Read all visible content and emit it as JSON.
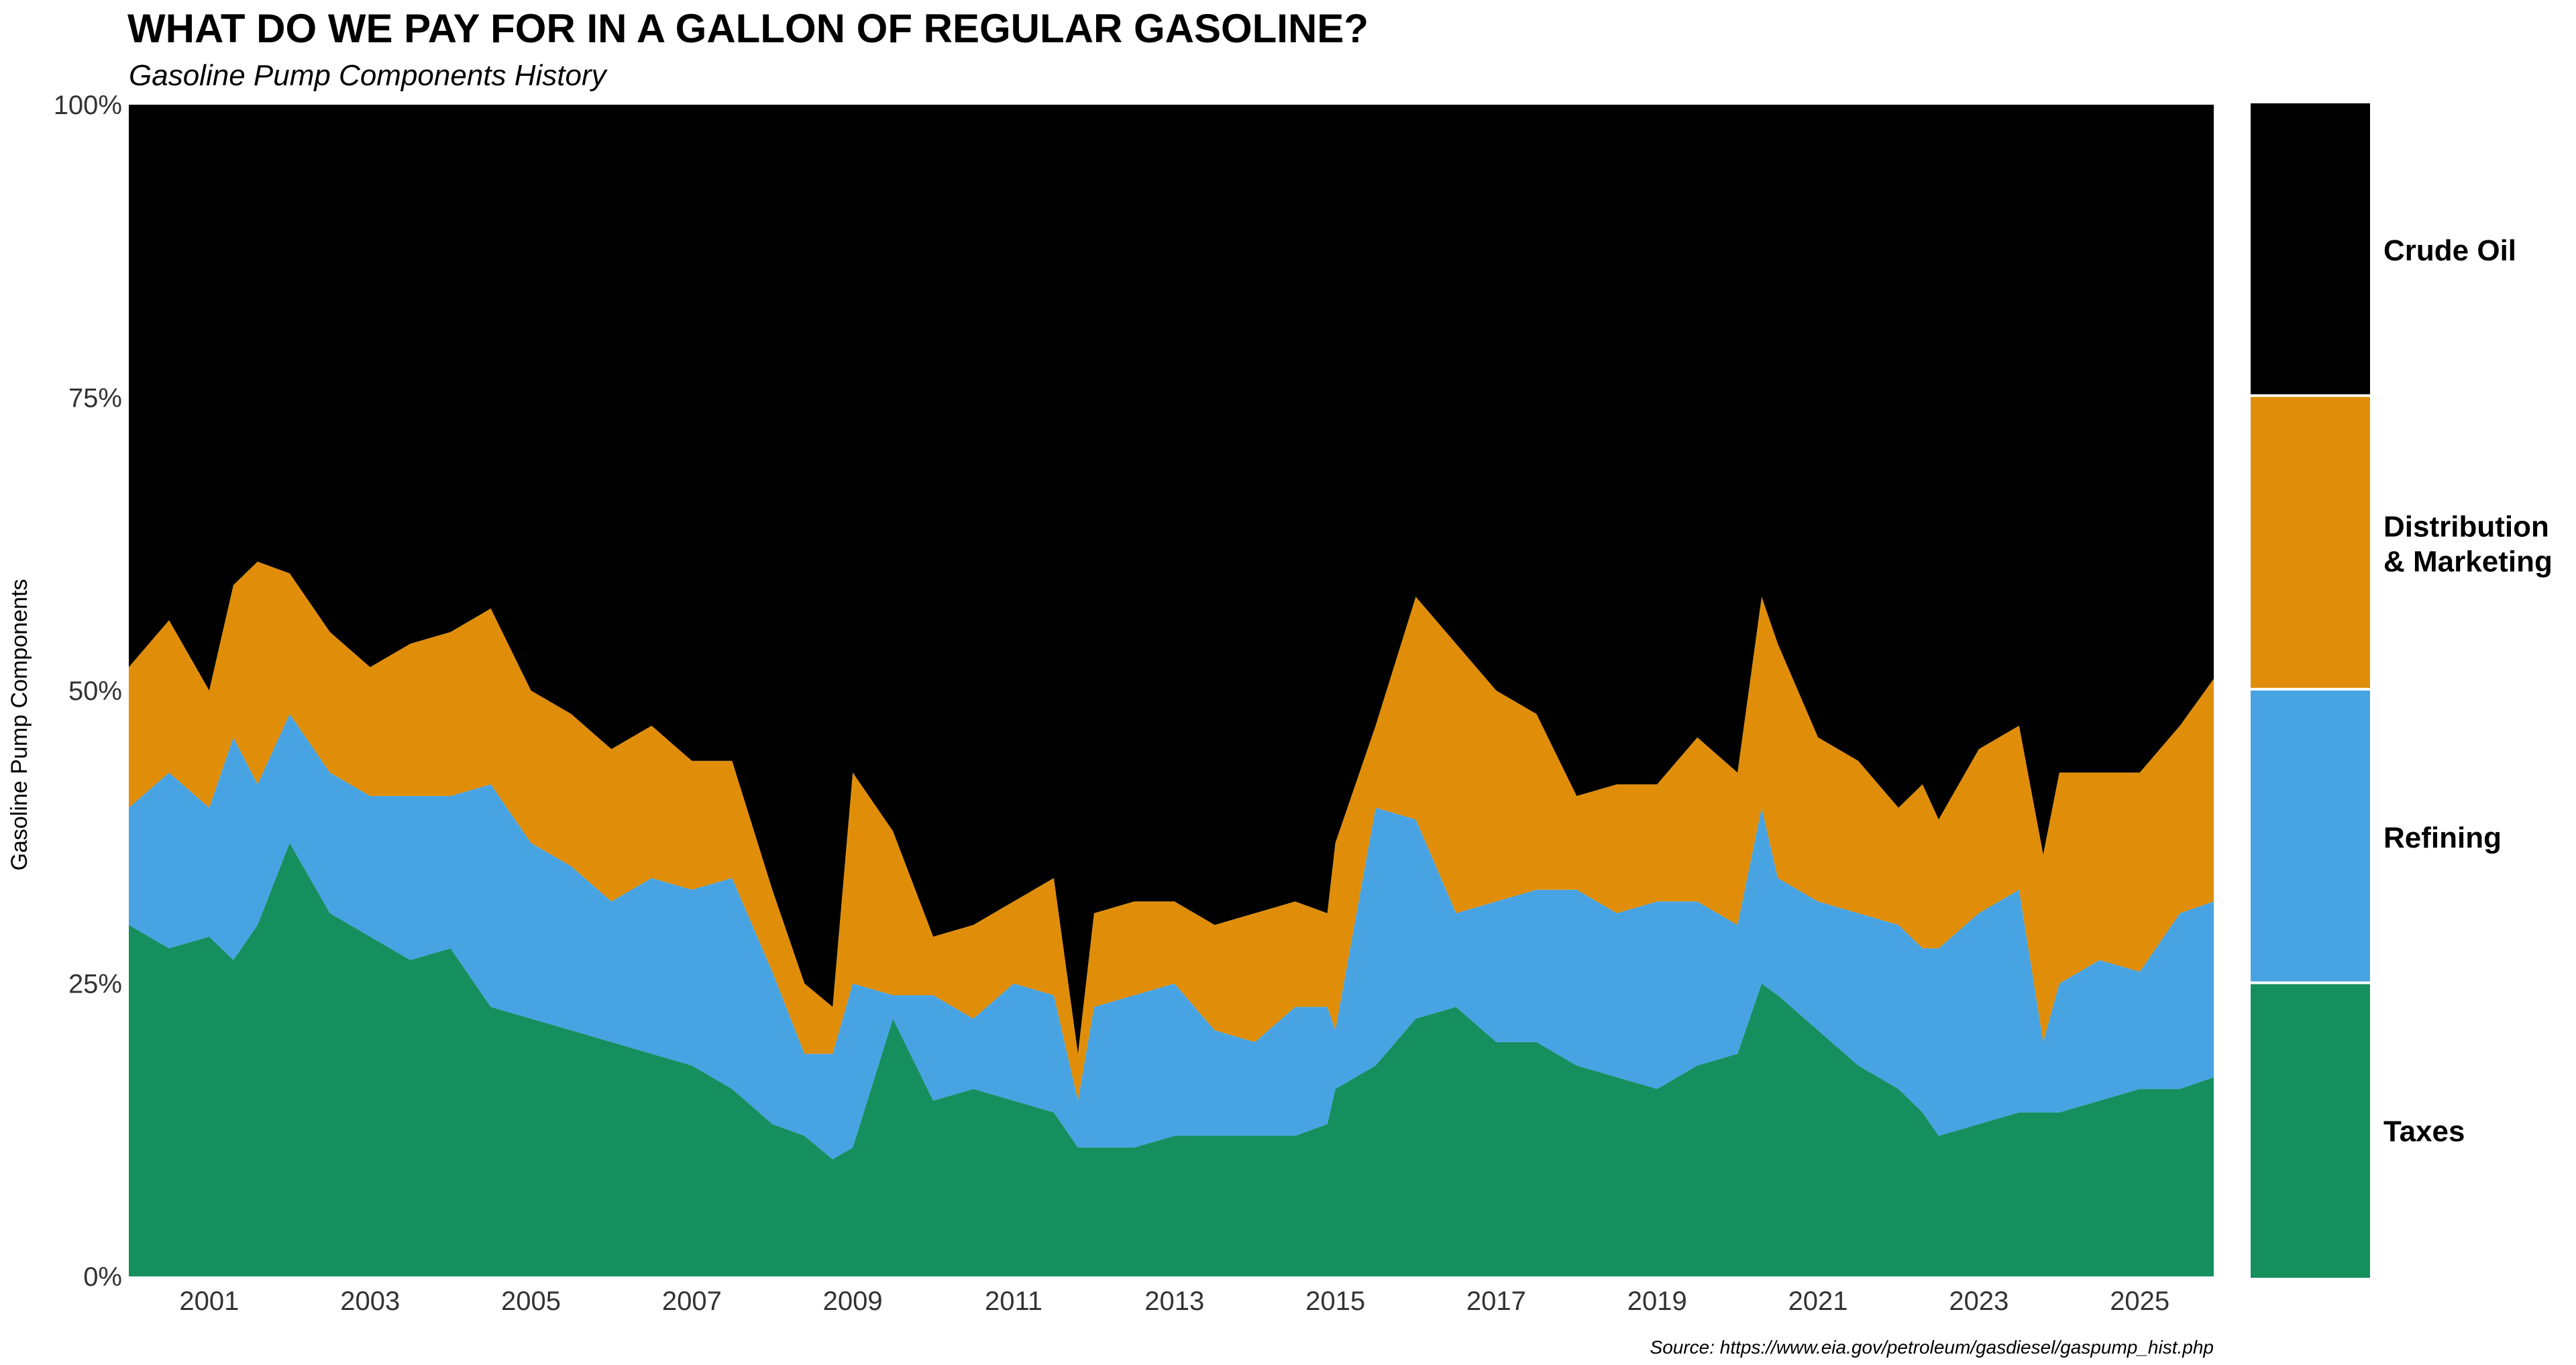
{
  "chart_data": {
    "type": "area",
    "stacked": true,
    "normalized": true,
    "title": "WHAT DO WE PAY FOR IN A GALLON OF REGULAR GASOLINE?",
    "subtitle": "Gasoline Pump Components History",
    "ylabel": "Gasoline Pump Components",
    "xlabel": "",
    "source": "Source: https://www.eia.gov/petroleum/gasdiesel/gaspump_hist.php",
    "ylim": [
      0,
      100
    ],
    "xlim": [
      2000.0,
      2025.92
    ],
    "y_ticks": [
      {
        "value": 0,
        "label": "0%"
      },
      {
        "value": 25,
        "label": "25%"
      },
      {
        "value": 50,
        "label": "50%"
      },
      {
        "value": 75,
        "label": "75%"
      },
      {
        "value": 100,
        "label": "100%"
      }
    ],
    "x_ticks": [
      {
        "value": 2001,
        "label": "2001"
      },
      {
        "value": 2003,
        "label": "2003"
      },
      {
        "value": 2005,
        "label": "2005"
      },
      {
        "value": 2007,
        "label": "2007"
      },
      {
        "value": 2009,
        "label": "2009"
      },
      {
        "value": 2011,
        "label": "2011"
      },
      {
        "value": 2013,
        "label": "2013"
      },
      {
        "value": 2015,
        "label": "2015"
      },
      {
        "value": 2017,
        "label": "2017"
      },
      {
        "value": 2019,
        "label": "2019"
      },
      {
        "value": 2021,
        "label": "2021"
      },
      {
        "value": 2023,
        "label": "2023"
      },
      {
        "value": 2025,
        "label": "2025"
      }
    ],
    "x": [
      2000.0,
      2000.5,
      2001.0,
      2001.3,
      2001.6,
      2002.0,
      2002.5,
      2003.0,
      2003.5,
      2004.0,
      2004.5,
      2005.0,
      2005.5,
      2006.0,
      2006.5,
      2007.0,
      2007.5,
      2008.0,
      2008.4,
      2008.75,
      2009.0,
      2009.5,
      2010.0,
      2010.5,
      2011.0,
      2011.5,
      2011.8,
      2012.0,
      2012.5,
      2013.0,
      2013.5,
      2014.0,
      2014.5,
      2014.9,
      2015.0,
      2015.5,
      2016.0,
      2016.5,
      2017.0,
      2017.5,
      2018.0,
      2018.5,
      2019.0,
      2019.5,
      2020.0,
      2020.3,
      2020.5,
      2021.0,
      2021.5,
      2022.0,
      2022.3,
      2022.5,
      2023.0,
      2023.5,
      2023.8,
      2024.0,
      2024.5,
      2025.0,
      2025.5,
      2025.92
    ],
    "series": [
      {
        "name": "Taxes",
        "color": "#168f5f",
        "values": [
          30,
          28,
          29,
          27,
          30,
          37,
          31,
          29,
          27,
          28,
          23,
          22,
          21,
          20,
          19,
          18,
          16,
          13,
          12,
          10,
          11,
          22,
          15,
          16,
          15,
          14,
          11,
          11,
          11,
          12,
          12,
          12,
          12,
          13,
          16,
          18,
          22,
          23,
          20,
          20,
          18,
          17,
          16,
          18,
          19,
          25,
          24,
          21,
          18,
          16,
          14,
          12,
          13,
          14,
          14,
          14,
          15,
          16,
          16,
          17
        ]
      },
      {
        "name": "Refining",
        "color": "#48a3e3",
        "values": [
          10,
          15,
          11,
          19,
          12,
          11,
          12,
          12,
          14,
          13,
          19,
          15,
          14,
          12,
          15,
          15,
          18,
          13,
          7,
          9,
          14,
          2,
          9,
          6,
          10,
          10,
          4,
          12,
          13,
          13,
          9,
          8,
          11,
          10,
          5,
          22,
          17,
          8,
          12,
          13,
          15,
          14,
          16,
          14,
          11,
          15,
          10,
          11,
          13,
          14,
          14,
          16,
          18,
          19,
          6,
          11,
          12,
          10,
          15,
          15
        ]
      },
      {
        "name": "Distribution & Marketing",
        "color": "#e08e0a",
        "values": [
          12,
          13,
          10,
          13,
          19,
          12,
          12,
          11,
          13,
          14,
          15,
          13,
          13,
          13,
          13,
          11,
          10,
          7,
          6,
          4,
          18,
          14,
          5,
          8,
          7,
          10,
          4,
          8,
          8,
          7,
          9,
          11,
          9,
          8,
          16,
          7,
          19,
          23,
          18,
          15,
          8,
          11,
          10,
          14,
          13,
          18,
          20,
          14,
          13,
          10,
          14,
          11,
          14,
          14,
          16,
          18,
          16,
          17,
          16,
          19
        ]
      },
      {
        "name": "Crude Oil",
        "color": "#000000",
        "values": [
          48,
          44,
          50,
          41,
          39,
          40,
          45,
          48,
          46,
          45,
          43,
          50,
          52,
          55,
          53,
          56,
          56,
          67,
          75,
          77,
          57,
          62,
          71,
          70,
          68,
          66,
          81,
          69,
          68,
          68,
          70,
          69,
          68,
          69,
          63,
          53,
          42,
          46,
          50,
          52,
          59,
          58,
          58,
          54,
          57,
          42,
          46,
          54,
          56,
          60,
          58,
          61,
          55,
          53,
          64,
          57,
          57,
          57,
          53,
          49
        ]
      }
    ],
    "legend": [
      "Crude Oil",
      "Distribution & Marketing",
      "Refining",
      "Taxes"
    ],
    "legend_placement": "right"
  }
}
